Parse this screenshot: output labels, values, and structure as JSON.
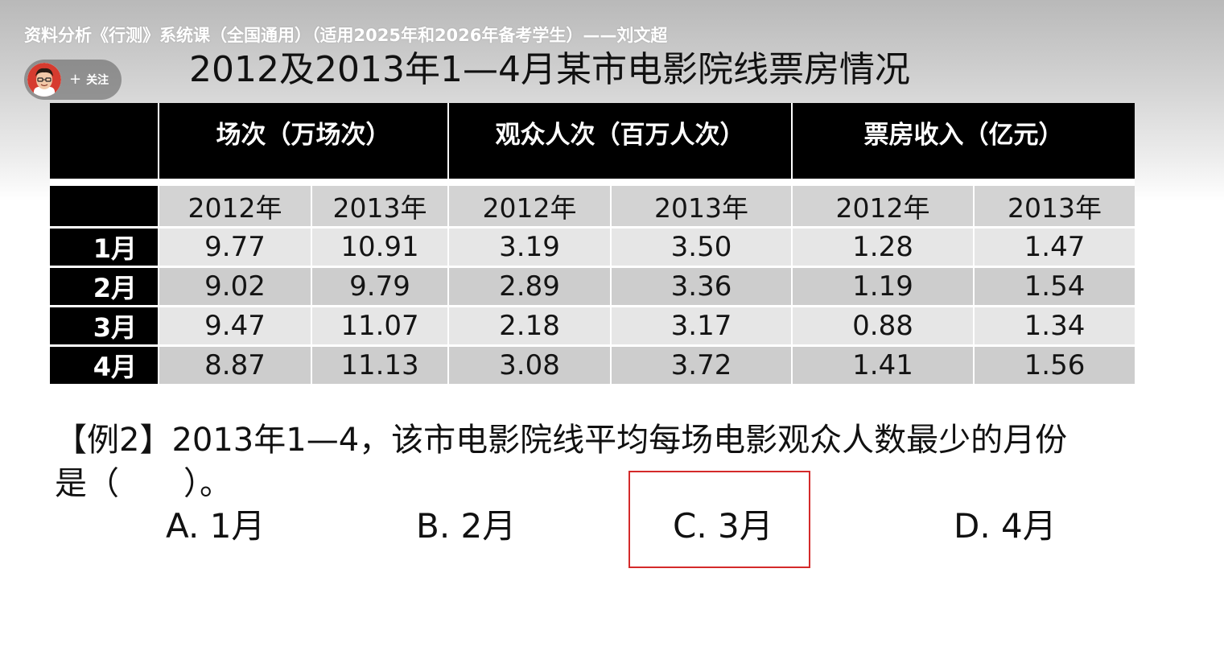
{
  "video": {
    "title": "资料分析《行测》系统课（全国通用）（适用2025年和2026年备考学生）——刘文超",
    "follow_label": "关注",
    "follow_symbol": "+"
  },
  "slide": {
    "title": "2012及2013年1—4月某市电影院线票房情况",
    "table": {
      "group_headers": [
        "场次（万场次）",
        "观众人次（百万人次）",
        "票房收入（亿元）"
      ],
      "year_headers": [
        "2012年",
        "2013年",
        "2012年",
        "2013年",
        "2012年",
        "2013年"
      ],
      "rows": [
        {
          "month": "1月",
          "values": [
            "9.77",
            "10.91",
            "3.19",
            "3.50",
            "1.28",
            "1.47"
          ]
        },
        {
          "month": "2月",
          "values": [
            "9.02",
            "9.79",
            "2.89",
            "3.36",
            "1.19",
            "1.54"
          ]
        },
        {
          "month": "3月",
          "values": [
            "9.47",
            "11.07",
            "2.18",
            "3.17",
            "0.88",
            "1.34"
          ]
        },
        {
          "month": "4月",
          "values": [
            "8.87",
            "11.13",
            "3.08",
            "3.72",
            "1.41",
            "1.56"
          ]
        }
      ]
    },
    "question": {
      "line1": "【例2】2013年1—4，该市电影院线平均每场电影观众人数最少的月份",
      "line2": "是（　　）。",
      "options": [
        "A. 1月",
        "B. 2月",
        "C. 3月",
        "D. 4月"
      ],
      "highlighted_option": "C. 3月"
    }
  },
  "colors": {
    "highlight_border": "#d42a2a",
    "header_bg": "#000000",
    "row_light": "#e6e6e6",
    "row_dark": "#cdcdcd"
  }
}
